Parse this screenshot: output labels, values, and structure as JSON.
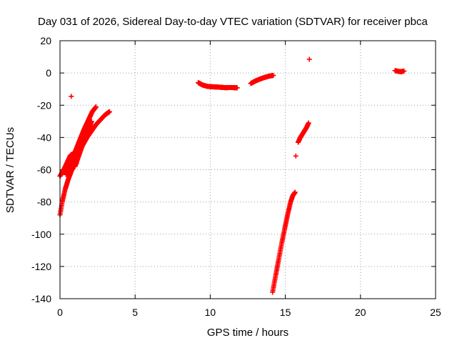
{
  "chart_data": {
    "type": "scatter",
    "title": "Day 031 of 2026, Sidereal Day-to-day VTEC variation (SDTVAR) for receiver pbca",
    "xlabel": "GPS time / hours",
    "ylabel": "SDTVAR / TECUs",
    "xlim": [
      0,
      25
    ],
    "ylim": [
      -140,
      20
    ],
    "xticks": [
      0,
      5,
      10,
      15,
      20,
      25
    ],
    "yticks": [
      -140,
      -120,
      -100,
      -80,
      -60,
      -40,
      -20,
      0,
      20
    ],
    "grid": true,
    "marker": "+",
    "color": "#ff0000",
    "segments": [
      {
        "points": [
          [
            0.0,
            -64
          ],
          [
            0.25,
            -60
          ],
          [
            0.5,
            -55
          ],
          [
            0.7,
            -51
          ],
          [
            0.9,
            -50
          ],
          [
            1.1,
            -52
          ]
        ]
      },
      {
        "points": [
          [
            0.0,
            -88
          ],
          [
            0.15,
            -80
          ],
          [
            0.35,
            -72
          ],
          [
            0.55,
            -66
          ],
          [
            0.75,
            -61
          ],
          [
            0.95,
            -57
          ],
          [
            1.1,
            -56
          ]
        ]
      },
      {
        "points": [
          [
            0.4,
            -63
          ],
          [
            0.7,
            -56
          ],
          [
            1.0,
            -49
          ],
          [
            1.3,
            -42
          ],
          [
            1.6,
            -35
          ],
          [
            1.9,
            -29
          ],
          [
            2.15,
            -24
          ],
          [
            2.4,
            -21
          ]
        ]
      },
      {
        "points": [
          [
            0.6,
            -64
          ],
          [
            0.9,
            -57
          ],
          [
            1.2,
            -51
          ],
          [
            1.5,
            -45
          ],
          [
            1.8,
            -40
          ],
          [
            2.1,
            -36
          ],
          [
            2.4,
            -32
          ],
          [
            2.7,
            -29
          ],
          [
            3.0,
            -26
          ],
          [
            3.3,
            -24
          ]
        ]
      },
      {
        "points": [
          [
            1.0,
            -58
          ],
          [
            1.3,
            -50
          ],
          [
            1.6,
            -42
          ],
          [
            1.9,
            -35
          ],
          [
            2.1,
            -30
          ]
        ]
      },
      {
        "points": [
          [
            0.75,
            -14.5
          ]
        ]
      },
      {
        "points": [
          [
            9.2,
            -6
          ],
          [
            9.5,
            -7.5
          ],
          [
            9.8,
            -8.3
          ],
          [
            10.2,
            -8.6
          ],
          [
            10.6,
            -8.8
          ],
          [
            11.0,
            -9.1
          ],
          [
            11.4,
            -9.0
          ],
          [
            11.8,
            -9.2
          ]
        ]
      },
      {
        "points": [
          [
            12.7,
            -6.5
          ],
          [
            13.0,
            -5
          ],
          [
            13.3,
            -3.8
          ],
          [
            13.6,
            -2.8
          ],
          [
            13.9,
            -2.0
          ],
          [
            14.2,
            -1.5
          ]
        ]
      },
      {
        "points": [
          [
            14.15,
            -136
          ],
          [
            14.35,
            -126
          ],
          [
            14.55,
            -116
          ],
          [
            14.75,
            -106
          ],
          [
            14.95,
            -97
          ],
          [
            15.15,
            -88
          ],
          [
            15.35,
            -80
          ],
          [
            15.5,
            -76
          ],
          [
            15.65,
            -74
          ]
        ]
      },
      {
        "points": [
          [
            15.7,
            -51.5
          ]
        ]
      },
      {
        "points": [
          [
            15.85,
            -43
          ],
          [
            16.0,
            -40
          ],
          [
            16.2,
            -37
          ],
          [
            16.4,
            -34
          ],
          [
            16.55,
            -31
          ]
        ]
      },
      {
        "points": [
          [
            16.6,
            8.5
          ]
        ]
      },
      {
        "points": [
          [
            22.3,
            1.5
          ],
          [
            22.5,
            1.0
          ],
          [
            22.7,
            0.8
          ],
          [
            22.9,
            1.2
          ]
        ]
      }
    ]
  }
}
